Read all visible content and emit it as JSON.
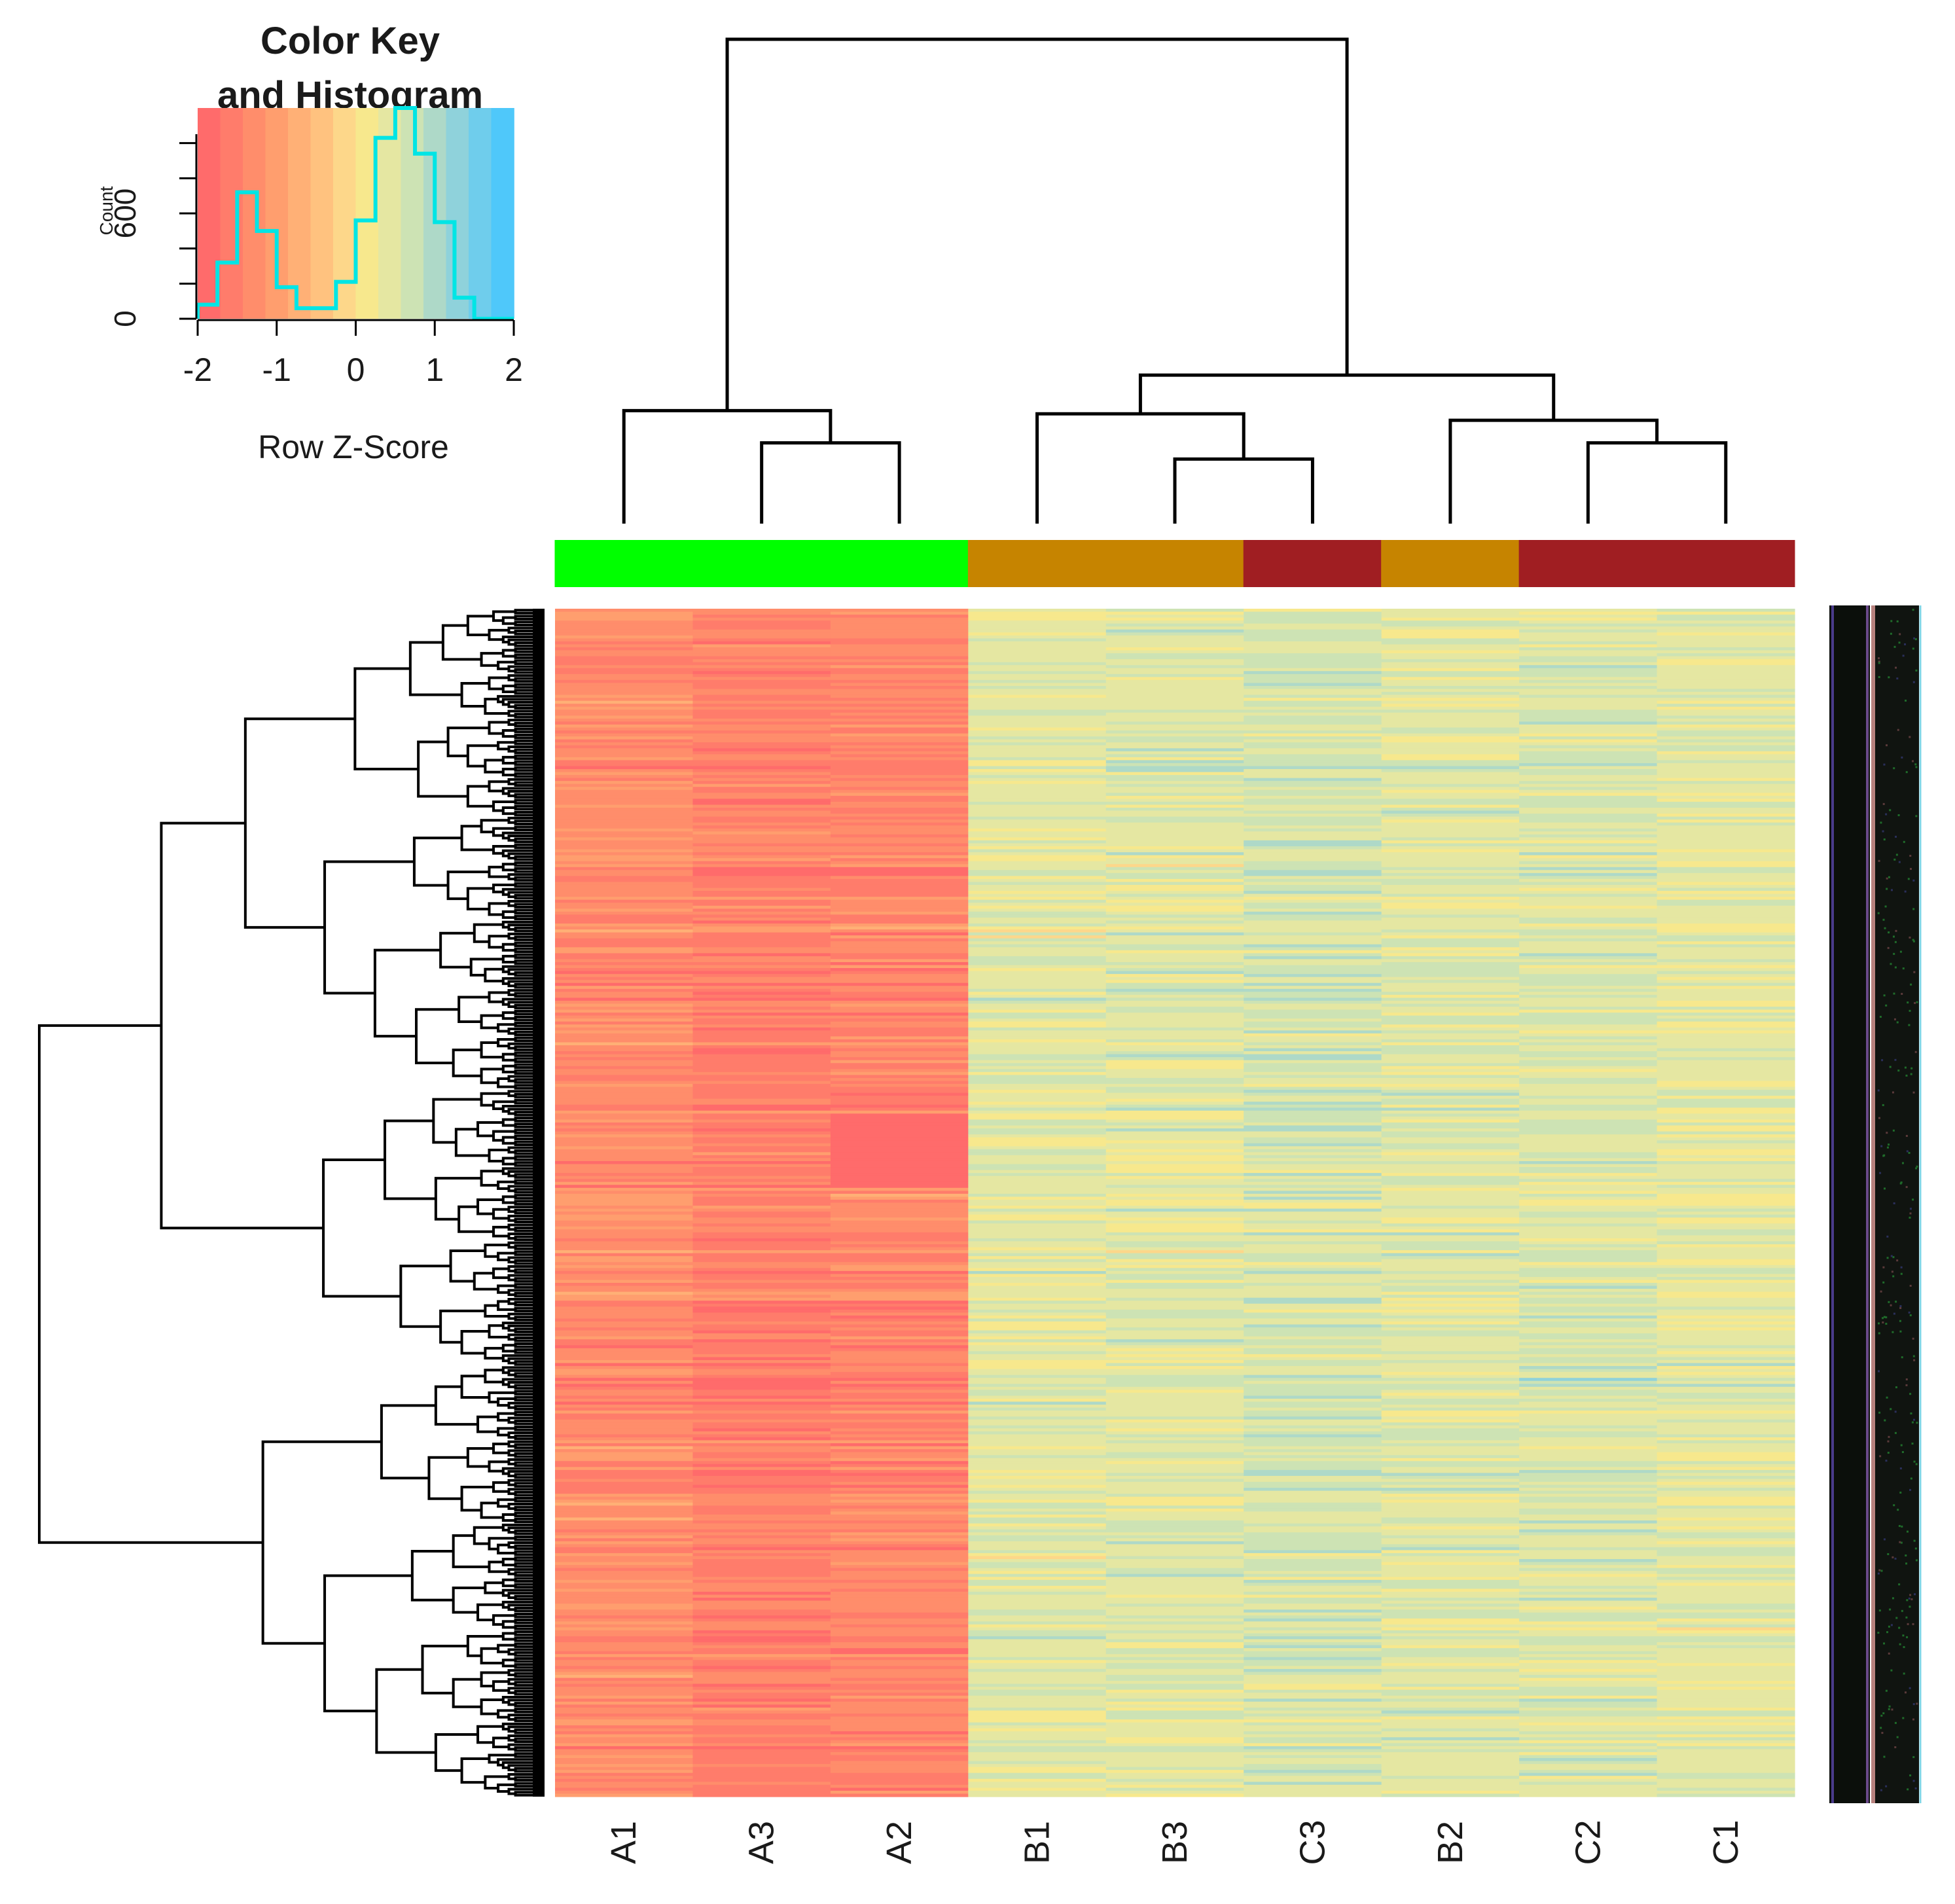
{
  "chart_data": {
    "type": "heatmap",
    "title": "",
    "xlabel": "",
    "ylabel": "",
    "columns": [
      "A1",
      "A3",
      "A2",
      "B1",
      "B3",
      "C3",
      "B2",
      "C2",
      "C1"
    ],
    "column_groups": [
      "A",
      "A",
      "A",
      "B",
      "B",
      "C",
      "B",
      "C",
      "C"
    ],
    "group_colors": {
      "A": "#00ff00",
      "B": "#c68400",
      "C": "#a01e22"
    },
    "row_count": 400,
    "column_group_means": {
      "A1": -1.3,
      "A3": -1.5,
      "A2": -1.4,
      "B1": 0.45,
      "B3": 0.5,
      "C3": 0.6,
      "B2": 0.5,
      "C2": 0.55,
      "C1": 0.45
    },
    "column_dendrogram": {
      "leaves": [
        "A1",
        "A3",
        "A2",
        "B1",
        "B3",
        "C3",
        "B2",
        "C2",
        "C1"
      ],
      "merges": [
        {
          "left": "A3",
          "right": "A2",
          "height": 0.5
        },
        {
          "left": "A1",
          "right": "(A3,A2)",
          "height": 0.7
        },
        {
          "left": "B3",
          "right": "C3",
          "height": 0.4
        },
        {
          "left": "B1",
          "right": "(B3,C3)",
          "height": 0.68
        },
        {
          "left": "C2",
          "right": "C1",
          "height": 0.5
        },
        {
          "left": "B2",
          "right": "(C2,C1)",
          "height": 0.64
        },
        {
          "left": "(B1,B3,C3)",
          "right": "(B2,C2,C1)",
          "height": 0.92
        },
        {
          "left": "(A)",
          "right": "(B,C)",
          "height": 3.0
        }
      ]
    },
    "color_key": {
      "title_line1": "Color Key",
      "title_line2": "and Histogram",
      "xlabel": "Row Z-Score",
      "ylabel": "Count",
      "xlim": [
        -2,
        2
      ],
      "x_ticks": [
        "-2",
        "-1",
        "0",
        "1",
        "2"
      ],
      "y_ticks": [
        "0",
        "600"
      ],
      "ylim": [
        0,
        1200
      ],
      "colors": [
        "#ff6b6b",
        "#ff7c6b",
        "#ff8d6b",
        "#ff9e6e",
        "#ffb076",
        "#ffc27f",
        "#fdd78a",
        "#f7e88d",
        "#e5e7a2",
        "#cde3b4",
        "#aed9c8",
        "#8fd2db",
        "#6fcdec",
        "#4fc8fa"
      ],
      "histogram": {
        "bin_edges": [
          -2.0,
          -1.75,
          -1.5,
          -1.25,
          -1.0,
          -0.75,
          -0.5,
          -0.25,
          0.0,
          0.25,
          0.5,
          0.75,
          1.0,
          1.25,
          1.5,
          1.75,
          2.0
        ],
        "counts": [
          80,
          320,
          720,
          500,
          180,
          60,
          60,
          210,
          560,
          1030,
          1200,
          940,
          550,
          120,
          0,
          0
        ],
        "color": "#00e5e5"
      }
    }
  }
}
